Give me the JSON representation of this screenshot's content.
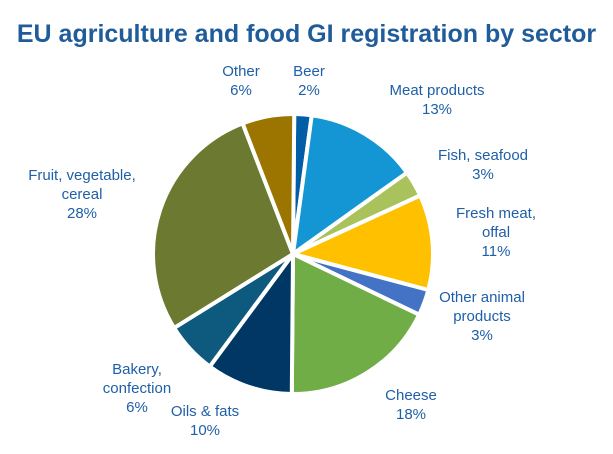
{
  "chart_data": {
    "type": "pie",
    "title": "EU agriculture and food GI registration by sector",
    "unit": "%",
    "slices": [
      {
        "label": "Beer",
        "value": 2,
        "color": "#005DA6",
        "display": "2%"
      },
      {
        "label": "Meat products",
        "value": 13,
        "color": "#1496D4",
        "display": "13%"
      },
      {
        "label": "Fish, seafood",
        "value": 3,
        "color": "#A9C25B",
        "display": "3%"
      },
      {
        "label": "Fresh meat, offal",
        "value": 11,
        "color": "#FFC000",
        "display": "11%"
      },
      {
        "label": "Other animal products",
        "value": 3,
        "color": "#4472C4",
        "display": "3%"
      },
      {
        "label": "Cheese",
        "value": 18,
        "color": "#70AD47",
        "display": "18%"
      },
      {
        "label": "Oils & fats",
        "value": 10,
        "color": "#003764",
        "display": "10%"
      },
      {
        "label": "Bakery, confection",
        "value": 6,
        "color": "#0E5A7E",
        "display": "6%"
      },
      {
        "label": "Fruit, vegetable, cereal",
        "value": 28,
        "color": "#6C7A31",
        "display": "28%"
      },
      {
        "label": "Other",
        "value": 6,
        "color": "#9C7500",
        "display": "6%"
      }
    ],
    "label_lines": [
      [
        "Beer"
      ],
      [
        "Meat products"
      ],
      [
        "Fish, seafood"
      ],
      [
        "Fresh meat,",
        "offal"
      ],
      [
        "Other animal",
        "products"
      ],
      [
        "Cheese"
      ],
      [
        "Oils & fats"
      ],
      [
        "Bakery,",
        "confection"
      ],
      [
        "Fruit, vegetable,",
        "cereal"
      ],
      [
        "Other"
      ]
    ]
  }
}
